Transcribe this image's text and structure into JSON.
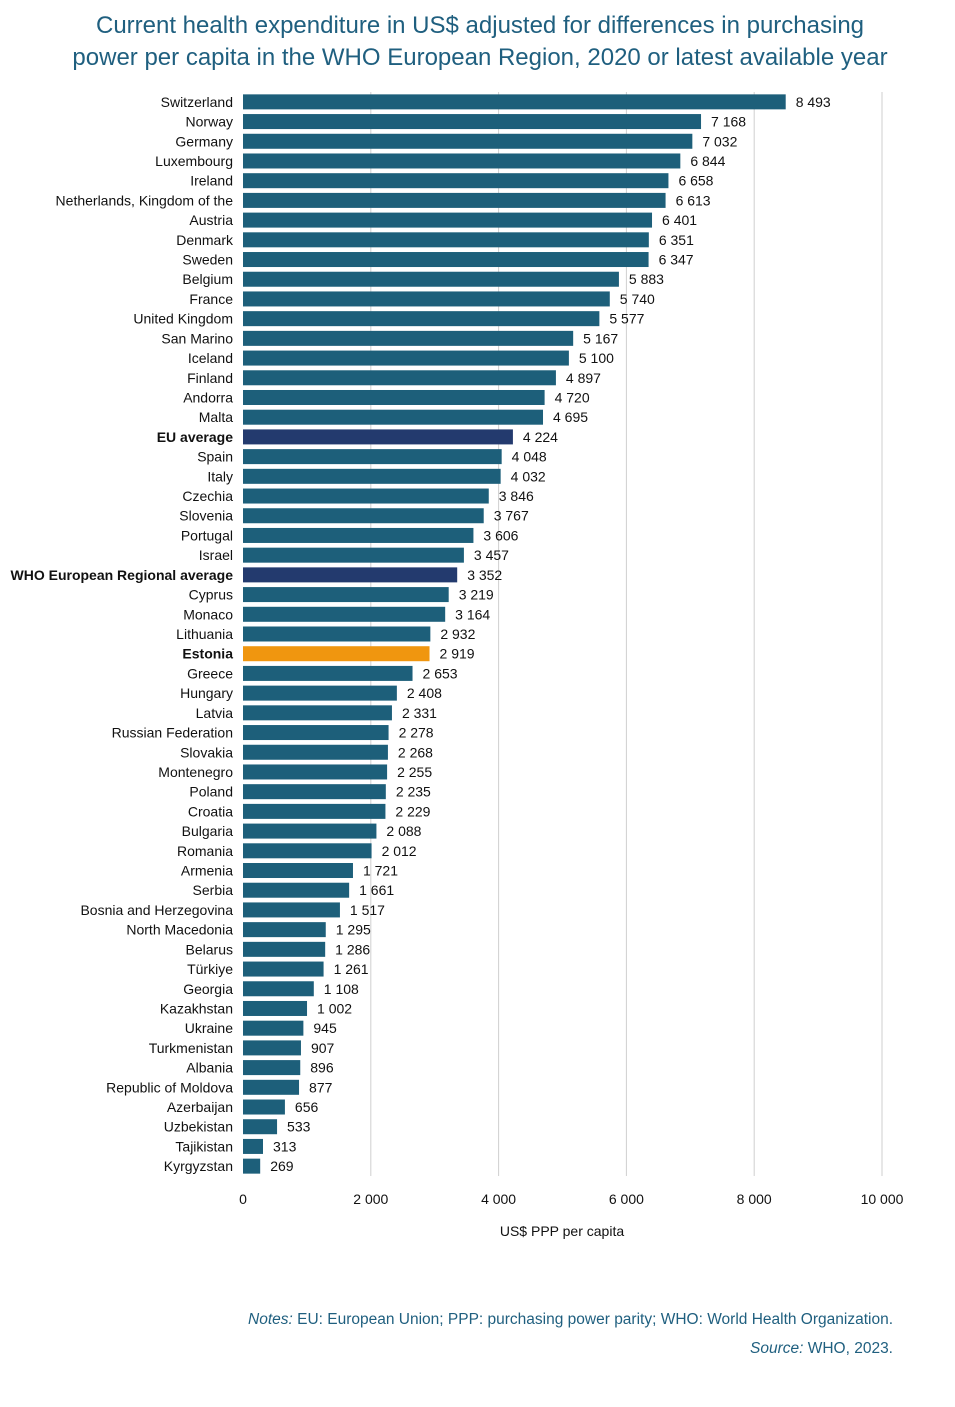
{
  "chart_data": {
    "type": "bar",
    "orientation": "horizontal",
    "title_lines": [
      "Current health expenditure in US$ adjusted for differences in purchasing",
      "power per capita in the WHO European Region, 2020 or latest available year"
    ],
    "xlabel": "US$ PPP per capita",
    "xlim": [
      0,
      10000
    ],
    "xticks": [
      0,
      2000,
      4000,
      6000,
      8000,
      10000
    ],
    "xtick_labels": [
      "0",
      "2 000",
      "4 000",
      "6 000",
      "8 000",
      "10 000"
    ],
    "grid": "vertical",
    "colors": {
      "default": "#1d5f7a",
      "average": "#233a6e",
      "highlight": "#f0960f"
    },
    "bars": [
      {
        "label": "Switzerland",
        "value": 8493,
        "value_label": "8 493",
        "kind": "default"
      },
      {
        "label": "Norway",
        "value": 7168,
        "value_label": "7 168",
        "kind": "default"
      },
      {
        "label": "Germany",
        "value": 7032,
        "value_label": "7 032",
        "kind": "default"
      },
      {
        "label": "Luxembourg",
        "value": 6844,
        "value_label": "6 844",
        "kind": "default"
      },
      {
        "label": "Ireland",
        "value": 6658,
        "value_label": "6 658",
        "kind": "default"
      },
      {
        "label": "Netherlands, Kingdom of the",
        "value": 6613,
        "value_label": "6 613",
        "kind": "default"
      },
      {
        "label": "Austria",
        "value": 6401,
        "value_label": "6 401",
        "kind": "default"
      },
      {
        "label": "Denmark",
        "value": 6351,
        "value_label": "6 351",
        "kind": "default"
      },
      {
        "label": "Sweden",
        "value": 6347,
        "value_label": "6 347",
        "kind": "default"
      },
      {
        "label": "Belgium",
        "value": 5883,
        "value_label": "5 883",
        "kind": "default"
      },
      {
        "label": "France",
        "value": 5740,
        "value_label": "5 740",
        "kind": "default"
      },
      {
        "label": "United Kingdom",
        "value": 5577,
        "value_label": "5 577",
        "kind": "default"
      },
      {
        "label": "San Marino",
        "value": 5167,
        "value_label": "5 167",
        "kind": "default"
      },
      {
        "label": "Iceland",
        "value": 5100,
        "value_label": "5 100",
        "kind": "default"
      },
      {
        "label": "Finland",
        "value": 4897,
        "value_label": "4 897",
        "kind": "default"
      },
      {
        "label": "Andorra",
        "value": 4720,
        "value_label": "4 720",
        "kind": "default"
      },
      {
        "label": "Malta",
        "value": 4695,
        "value_label": "4 695",
        "kind": "default"
      },
      {
        "label": "EU average",
        "value": 4224,
        "value_label": "4 224",
        "kind": "average"
      },
      {
        "label": "Spain",
        "value": 4048,
        "value_label": "4 048",
        "kind": "default"
      },
      {
        "label": "Italy",
        "value": 4032,
        "value_label": "4 032",
        "kind": "default"
      },
      {
        "label": "Czechia",
        "value": 3846,
        "value_label": "3 846",
        "kind": "default"
      },
      {
        "label": "Slovenia",
        "value": 3767,
        "value_label": "3 767",
        "kind": "default"
      },
      {
        "label": "Portugal",
        "value": 3606,
        "value_label": "3 606",
        "kind": "default"
      },
      {
        "label": "Israel",
        "value": 3457,
        "value_label": "3 457",
        "kind": "default"
      },
      {
        "label": "WHO European Regional average",
        "value": 3352,
        "value_label": "3 352",
        "kind": "average"
      },
      {
        "label": "Cyprus",
        "value": 3219,
        "value_label": "3 219",
        "kind": "default"
      },
      {
        "label": "Monaco",
        "value": 3164,
        "value_label": "3 164",
        "kind": "default"
      },
      {
        "label": "Lithuania",
        "value": 2932,
        "value_label": "2 932",
        "kind": "default"
      },
      {
        "label": "Estonia",
        "value": 2919,
        "value_label": "2 919",
        "kind": "highlight"
      },
      {
        "label": "Greece",
        "value": 2653,
        "value_label": "2 653",
        "kind": "default"
      },
      {
        "label": "Hungary",
        "value": 2408,
        "value_label": "2 408",
        "kind": "default"
      },
      {
        "label": "Latvia",
        "value": 2331,
        "value_label": "2 331",
        "kind": "default"
      },
      {
        "label": "Russian Federation",
        "value": 2278,
        "value_label": "2 278",
        "kind": "default"
      },
      {
        "label": "Slovakia",
        "value": 2268,
        "value_label": "2 268",
        "kind": "default"
      },
      {
        "label": "Montenegro",
        "value": 2255,
        "value_label": "2 255",
        "kind": "default"
      },
      {
        "label": "Poland",
        "value": 2235,
        "value_label": "2 235",
        "kind": "default"
      },
      {
        "label": "Croatia",
        "value": 2229,
        "value_label": "2 229",
        "kind": "default"
      },
      {
        "label": "Bulgaria",
        "value": 2088,
        "value_label": "2 088",
        "kind": "default"
      },
      {
        "label": "Romania",
        "value": 2012,
        "value_label": "2 012",
        "kind": "default"
      },
      {
        "label": "Armenia",
        "value": 1721,
        "value_label": "1 721",
        "kind": "default"
      },
      {
        "label": "Serbia",
        "value": 1661,
        "value_label": "1 661",
        "kind": "default"
      },
      {
        "label": "Bosnia and Herzegovina",
        "value": 1517,
        "value_label": "1 517",
        "kind": "default"
      },
      {
        "label": "North Macedonia",
        "value": 1295,
        "value_label": "1 295",
        "kind": "default"
      },
      {
        "label": "Belarus",
        "value": 1286,
        "value_label": "1 286",
        "kind": "default"
      },
      {
        "label": "Türkiye",
        "value": 1261,
        "value_label": "1 261",
        "kind": "default"
      },
      {
        "label": "Georgia",
        "value": 1108,
        "value_label": "1 108",
        "kind": "default"
      },
      {
        "label": "Kazakhstan",
        "value": 1002,
        "value_label": "1 002",
        "kind": "default"
      },
      {
        "label": "Ukraine",
        "value": 945,
        "value_label": "945",
        "kind": "default"
      },
      {
        "label": "Turkmenistan",
        "value": 907,
        "value_label": "907",
        "kind": "default"
      },
      {
        "label": "Albania",
        "value": 896,
        "value_label": "896",
        "kind": "default"
      },
      {
        "label": "Republic of Moldova",
        "value": 877,
        "value_label": "877",
        "kind": "default"
      },
      {
        "label": "Azerbaijan",
        "value": 656,
        "value_label": "656",
        "kind": "default"
      },
      {
        "label": "Uzbekistan",
        "value": 533,
        "value_label": "533",
        "kind": "default"
      },
      {
        "label": "Tajikistan",
        "value": 313,
        "value_label": "313",
        "kind": "default"
      },
      {
        "label": "Kyrgyzstan",
        "value": 269,
        "value_label": "269",
        "kind": "default"
      }
    ]
  },
  "notes": {
    "notes_label": "Notes:",
    "notes_text": " EU: European Union; PPP: purchasing power parity; WHO: World Health Organization.",
    "source_label": "Source:",
    "source_text": " WHO, 2023."
  }
}
